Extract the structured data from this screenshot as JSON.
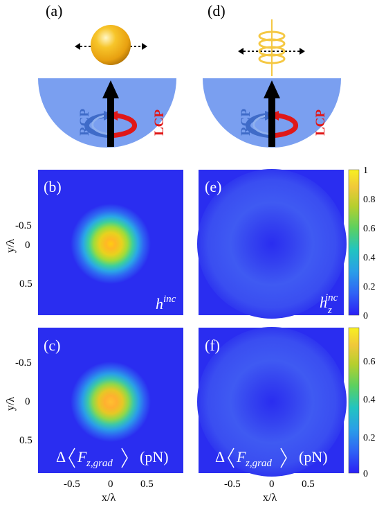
{
  "panels": {
    "a": "(a)",
    "b": "(b)",
    "c": "(c)",
    "d": "(d)",
    "e": "(e)",
    "f": "(f)"
  },
  "circ_labels": {
    "rcp": "RCP",
    "lcp": "LCP"
  },
  "overlays": {
    "b": {
      "sym": "h",
      "sup": "inc"
    },
    "e": {
      "sym": "h",
      "sub": "z",
      "sup": "inc"
    },
    "force": {
      "prefix": "Δ",
      "sym": "F",
      "sub": "z,grad",
      "unit": "(pN)"
    }
  },
  "axes": {
    "ylabel": "y/λ",
    "xlabel": "x/λ",
    "yticks": [
      "-0.5",
      "0",
      "0.5"
    ],
    "xticks": [
      "-0.5",
      "0",
      "0.5"
    ]
  },
  "colorbars": {
    "top": {
      "ticks": [
        "1",
        "0.8",
        "0.6",
        "0.4",
        "0.2",
        "0"
      ],
      "max": 1
    },
    "bottom": {
      "ticks": [
        "0.6",
        "0.4",
        "0.2",
        "0"
      ],
      "max": 0.75
    }
  },
  "colors": {
    "background_map": "#2a2df0",
    "hemisphere": "#7a9ff0",
    "rcp": "#3f6bc8",
    "lcp": "#e01818",
    "arrow": "#000000",
    "sphere": "#f2b21a",
    "helix": "#f5c843"
  }
}
